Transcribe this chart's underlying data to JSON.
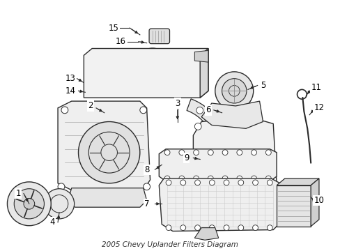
{
  "bg_color": "#ffffff",
  "line_color": "#2a2a2a",
  "title": "2005 Chevy Uplander Filters Diagram",
  "figsize": [
    4.89,
    3.6
  ],
  "dpi": 100
}
